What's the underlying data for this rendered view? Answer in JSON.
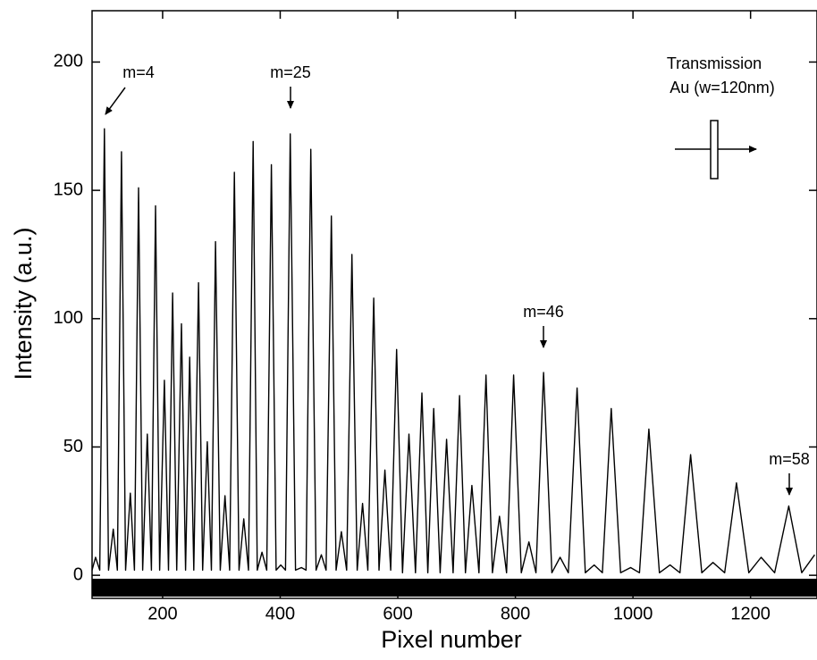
{
  "chart_data": {
    "type": "line",
    "x_label": "Pixel number",
    "y_label": "Intensity (a.u.)",
    "x": [
      80,
      86,
      93,
      101,
      108,
      116,
      123,
      130,
      137,
      145,
      152,
      159,
      166,
      174,
      181,
      188,
      195,
      203,
      210,
      217,
      224,
      232,
      239,
      246,
      253,
      261,
      268,
      276,
      283,
      290,
      298,
      306,
      314,
      322,
      330,
      338,
      346,
      354,
      361,
      369,
      377,
      385,
      393,
      401,
      409,
      417,
      426,
      436,
      444,
      452,
      461,
      470,
      478,
      487,
      495,
      504,
      513,
      522,
      531,
      540,
      549,
      559,
      568,
      578,
      588,
      598,
      608,
      619,
      630,
      641,
      651,
      661,
      672,
      683,
      694,
      705,
      715,
      726,
      738,
      750,
      761,
      773,
      785,
      797,
      810,
      823,
      835,
      848,
      862,
      876,
      890,
      905,
      919,
      934,
      948,
      963,
      979,
      996,
      1011,
      1027,
      1045,
      1063,
      1080,
      1098,
      1117,
      1136,
      1156,
      1176,
      1197,
      1218,
      1241,
      1265,
      1287,
      1309
    ],
    "series": [
      {
        "color": "#000000",
        "values": [
          2,
          7,
          2,
          174,
          2,
          18,
          2,
          165,
          2,
          32,
          2,
          151,
          2,
          55,
          2,
          144,
          2,
          76,
          2,
          110,
          2,
          98,
          2,
          85,
          2,
          114,
          2,
          52,
          2,
          130,
          2,
          31,
          2,
          157,
          2,
          22,
          2,
          169,
          2,
          9,
          2,
          160,
          2,
          4,
          2,
          172,
          2,
          3,
          2,
          166,
          2,
          8,
          2,
          140,
          2,
          17,
          2,
          125,
          2,
          28,
          2,
          108,
          2,
          41,
          2,
          88,
          1,
          55,
          1,
          71,
          1,
          65,
          1,
          53,
          1,
          70,
          1,
          35,
          1,
          78,
          1,
          23,
          1,
          78,
          1,
          13,
          1,
          79,
          1,
          7,
          1,
          73,
          1,
          4,
          1,
          65,
          1,
          3,
          1,
          57,
          1,
          4,
          1,
          47,
          1,
          5,
          1,
          36,
          1,
          7,
          1,
          27,
          1,
          8
        ]
      }
    ],
    "xlim": [
      80,
      1313
    ],
    "ylim": [
      -9,
      220
    ],
    "xticks": [
      200,
      400,
      600,
      800,
      1000,
      1200
    ],
    "yticks": [
      0,
      50,
      100,
      150,
      200
    ],
    "annotations": [
      "m=4",
      "m=25",
      "m=46",
      "m=58",
      "Transmission",
      "Au (w=120nm)"
    ]
  }
}
